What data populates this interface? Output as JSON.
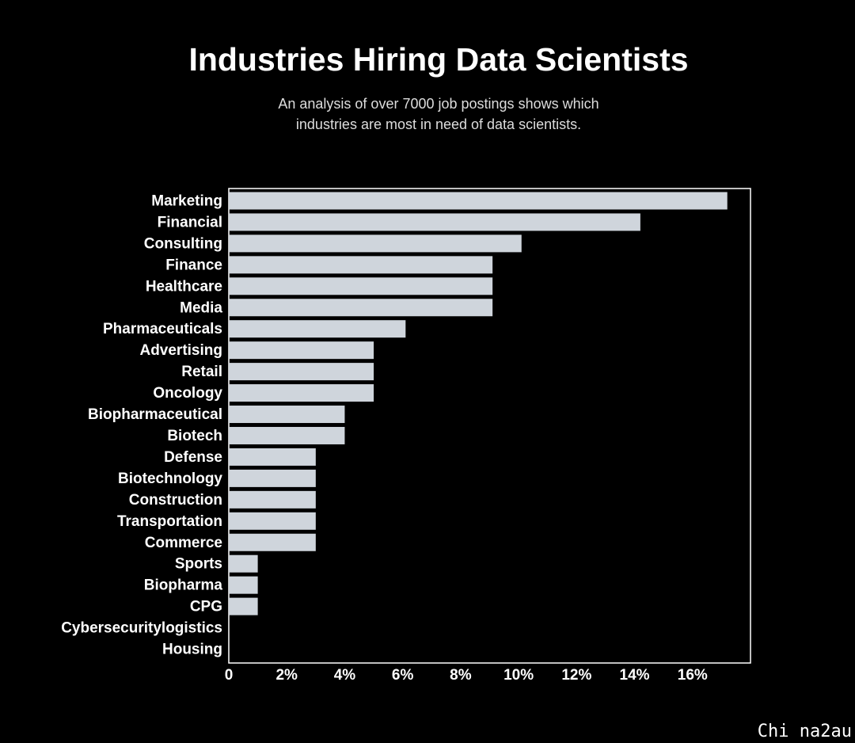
{
  "chart_data": {
    "type": "hbar",
    "title": "Industries Hiring Data Scientists",
    "subtitle": [
      "An analysis of over 7000 job postings shows which",
      "industries are most in need of data scientists."
    ],
    "categories": [
      "Marketing",
      "Financial",
      "Consulting",
      "Finance",
      "Healthcare",
      "Media",
      "Pharmaceuticals",
      "Advertising",
      "Retail",
      "Oncology",
      "Biopharmaceutical",
      "Biotech",
      "Defense",
      "Biotechnology",
      "Construction",
      "Transportation",
      "Commerce",
      "Sports",
      "Biopharma",
      "CPG",
      "Cybersecuritylogistics",
      "Housing"
    ],
    "values": [
      17.2,
      14.2,
      10.1,
      9.1,
      9.1,
      9.1,
      6.1,
      5.0,
      5.0,
      5.0,
      4.0,
      4.0,
      3.0,
      3.0,
      3.0,
      3.0,
      3.0,
      1.0,
      1.0,
      1.0,
      0,
      0
    ],
    "color": "#cfd5dc",
    "xlim": [
      0,
      18
    ],
    "xticks": [
      0,
      {
        "value": 2,
        "label": "2%"
      },
      {
        "value": 4,
        "label": "4%"
      },
      {
        "value": 6,
        "label": "6%"
      },
      {
        "value": 8,
        "label": "8%"
      },
      {
        "value": 10,
        "label": "10%"
      },
      {
        "value": 12,
        "label": "12%"
      },
      {
        "value": 14,
        "label": "14%"
      },
      {
        "value": 16,
        "label": "16%"
      }
    ],
    "grid": false
  },
  "watermark": "Chi na2au"
}
